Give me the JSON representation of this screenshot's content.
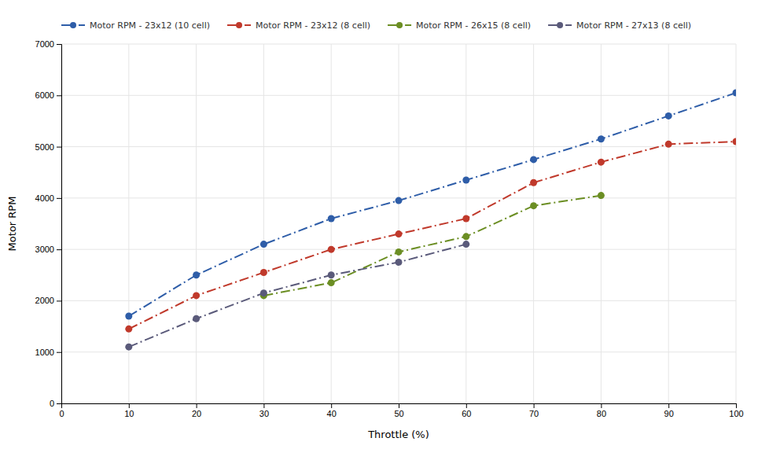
{
  "chart_data": {
    "type": "line",
    "xlabel": "Throttle (%)",
    "ylabel": "Motor RPM",
    "xlim": [
      0,
      100
    ],
    "ylim": [
      0,
      7000
    ],
    "xticks": [
      0,
      10,
      20,
      30,
      40,
      50,
      60,
      70,
      80,
      90,
      100
    ],
    "yticks": [
      0,
      1000,
      2000,
      3000,
      4000,
      5000,
      6000,
      7000
    ],
    "grid": true,
    "legend": "upper left",
    "marker": "circle",
    "line_style": "dashdot",
    "series": [
      {
        "name": "Motor RPM - 23x12 (10 cell)",
        "color": "#2E5DA8",
        "x": [
          10,
          20,
          30,
          40,
          50,
          60,
          70,
          80,
          90,
          100
        ],
        "values": [
          1700,
          2500,
          3100,
          3600,
          3950,
          4350,
          4750,
          5150,
          5600,
          6050
        ]
      },
      {
        "name": "Motor RPM - 23x12 (8 cell)",
        "color": "#C0392B",
        "x": [
          10,
          20,
          30,
          40,
          50,
          60,
          70,
          80,
          90,
          100
        ],
        "values": [
          1450,
          2100,
          2550,
          3000,
          3300,
          3600,
          4300,
          4700,
          5050,
          5100
        ]
      },
      {
        "name": "Motor RPM - 26x15 (8 cell)",
        "color": "#6B8E23",
        "x": [
          30,
          40,
          50,
          60,
          70,
          80
        ],
        "values": [
          2100,
          2350,
          2950,
          3250,
          3850,
          4050
        ]
      },
      {
        "name": "Motor RPM - 27x13 (8 cell)",
        "color": "#5A5A7A",
        "x": [
          10,
          20,
          30,
          40,
          50,
          60
        ],
        "values": [
          1100,
          1650,
          2150,
          2500,
          2750,
          3100
        ]
      }
    ]
  }
}
